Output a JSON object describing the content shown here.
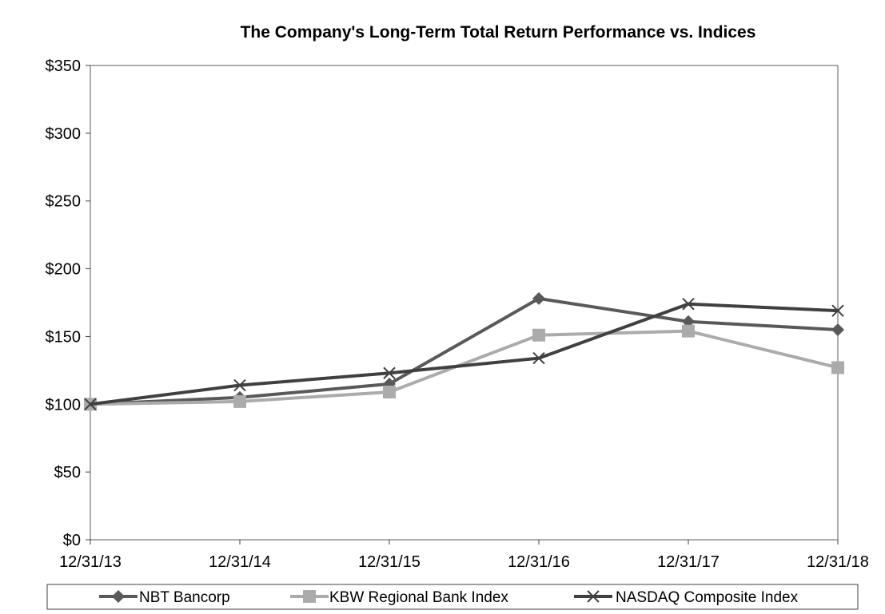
{
  "chart_data": {
    "type": "line",
    "title": "The Company's  Long-Term  Total Return Performance  vs. Indices",
    "xlabel": "",
    "ylabel": "",
    "categories": [
      "12/31/13",
      "12/31/14",
      "12/31/15",
      "12/31/16",
      "12/31/17",
      "12/31/18"
    ],
    "ylim": [
      0,
      350
    ],
    "yticks": [
      0,
      50,
      100,
      150,
      200,
      250,
      300,
      350
    ],
    "ytick_labels": [
      "$0",
      "$50",
      "$100",
      "$150",
      "$200",
      "$250",
      "$300",
      "$350"
    ],
    "grid": false,
    "legend_position": "bottom",
    "series": [
      {
        "name": "NBT Bancorp",
        "marker": "diamond",
        "color": "#595959",
        "values": [
          100,
          105,
          115,
          178,
          161,
          155
        ]
      },
      {
        "name": "KBW Regional Bank Index",
        "marker": "square",
        "color": "#ababab",
        "values": [
          100,
          102,
          109,
          151,
          154,
          127
        ]
      },
      {
        "name": "NASDAQ Composite Index",
        "marker": "x",
        "color": "#404040",
        "values": [
          100,
          114,
          123,
          134,
          174,
          169
        ]
      }
    ]
  }
}
